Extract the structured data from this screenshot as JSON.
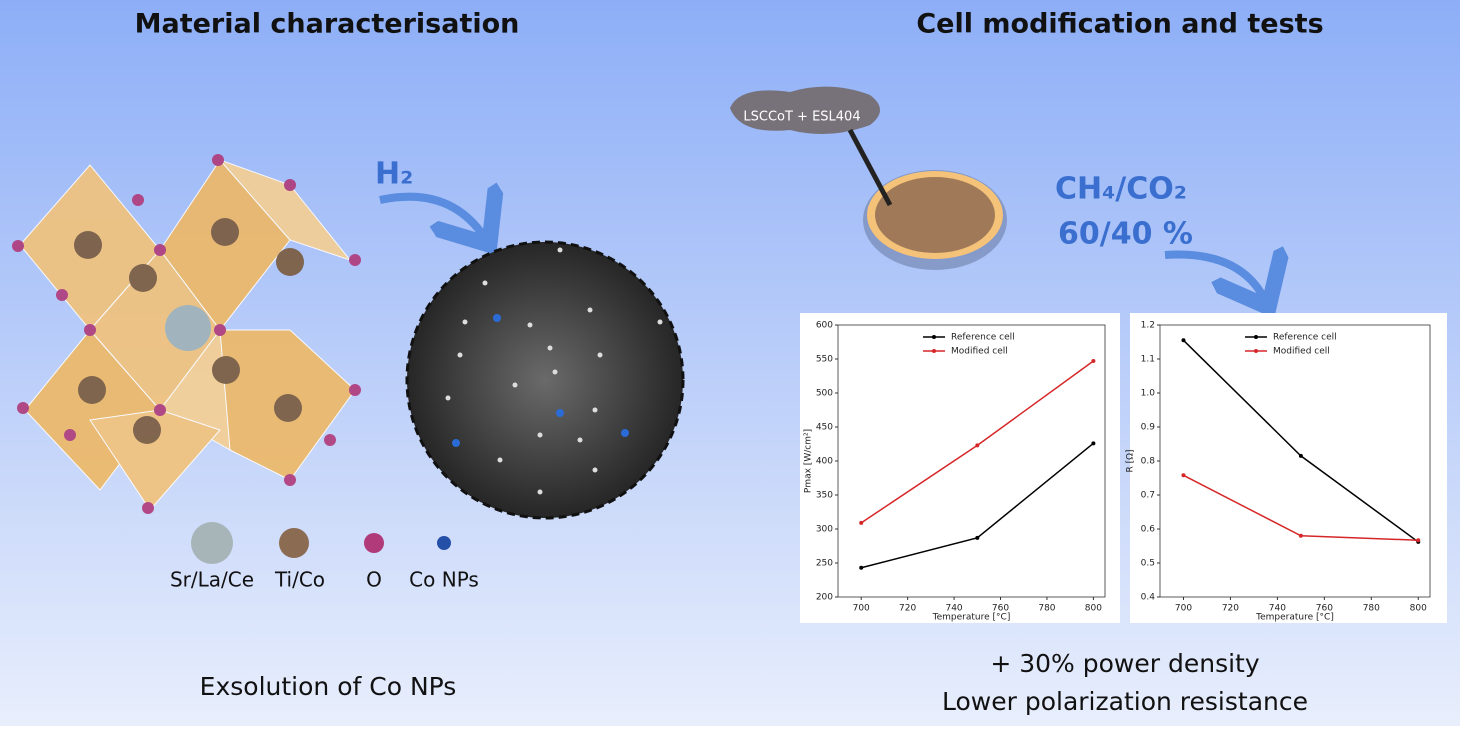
{
  "left_title": "Material characterisation",
  "right_title": "Cell modification and tests",
  "gas_left": "H₂",
  "gas_right_1": "CH₄/CO₂",
  "gas_right_2": "60/40 %",
  "ink_label": "LSCCoT + ESL404",
  "atom_legend": [
    "Sr/La/Ce",
    "Ti/Co",
    "O",
    "Co NPs"
  ],
  "left_caption": "Exsolution of Co NPs",
  "right_caption_1": "+ 30% power density",
  "right_caption_2": "Lower polarization resistance",
  "chart_data": [
    {
      "type": "line",
      "xlabel": "Temperature [°C]",
      "ylabel": "Pmax [W/cm²]",
      "x": [
        700,
        750,
        800
      ],
      "xlim": [
        690,
        805
      ],
      "xticks": [
        700,
        720,
        740,
        760,
        780,
        800
      ],
      "ylim": [
        200,
        600
      ],
      "yticks": [
        200,
        250,
        300,
        350,
        400,
        450,
        500,
        550,
        600
      ],
      "series": [
        {
          "name": "Reference cell",
          "color": "#000000",
          "values": [
            243,
            287,
            426
          ]
        },
        {
          "name": "Modified cell",
          "color": "#d62728",
          "values": [
            309,
            423,
            547
          ]
        }
      ]
    },
    {
      "type": "line",
      "xlabel": "Temperature [°C]",
      "ylabel": "R [Ω]",
      "x": [
        700,
        750,
        800
      ],
      "xlim": [
        690,
        805
      ],
      "xticks": [
        700,
        720,
        740,
        760,
        780,
        800
      ],
      "ylim": [
        0.4,
        1.2
      ],
      "yticks": [
        0.4,
        0.5,
        0.6,
        0.7,
        0.8,
        0.9,
        {
          "value": 1,
          "label": "1.0"
        },
        1.1,
        1.2
      ],
      "series": [
        {
          "name": "Reference cell",
          "color": "#000000",
          "values": [
            1.155,
            0.815,
            0.562
          ]
        },
        {
          "name": "Modified cell",
          "color": "#d62728",
          "values": [
            0.758,
            0.58,
            0.567
          ]
        }
      ]
    }
  ]
}
